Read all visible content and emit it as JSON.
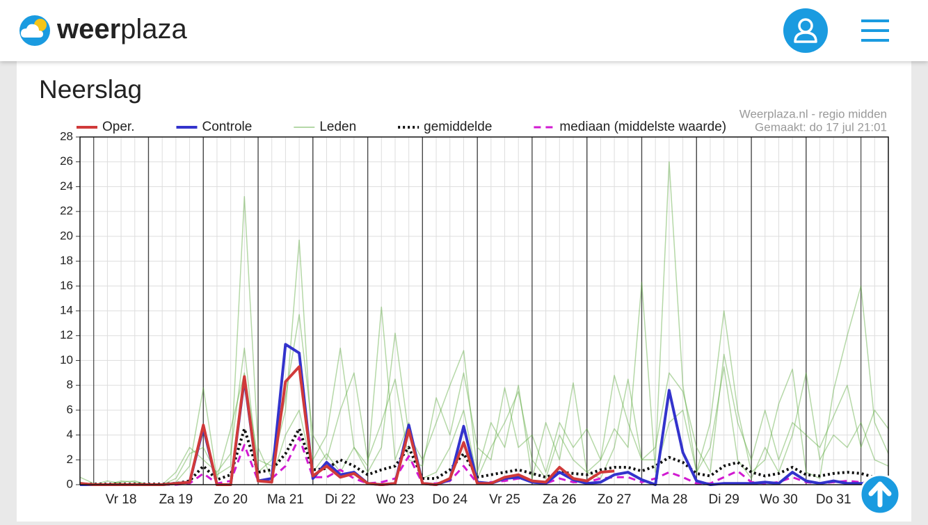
{
  "header": {
    "logo_bold": "weer",
    "logo_light": "plaza"
  },
  "card": {
    "title": "Neerslag",
    "source": "Weerplaza.nl - regio midden",
    "made": "Gemaakt: do 17 jul 21:01"
  },
  "chart_data": {
    "type": "line",
    "categories": [
      null,
      null,
      null,
      "Vr 18",
      null,
      null,
      null,
      "Za 19",
      null,
      null,
      null,
      "Zo 20",
      null,
      null,
      null,
      "Ma 21",
      null,
      null,
      null,
      "Di 22",
      null,
      null,
      null,
      "Wo 23",
      null,
      null,
      null,
      "Do 24",
      null,
      null,
      null,
      "Vr 25",
      null,
      null,
      null,
      "Za 26",
      null,
      null,
      null,
      "Zo 27",
      null,
      null,
      null,
      "Ma 28",
      null,
      null,
      null,
      "Di 29",
      null,
      null,
      null,
      "Wo 30",
      null,
      null,
      null,
      "Do 31",
      null,
      null,
      null,
      null
    ],
    "ylim": [
      0,
      28
    ],
    "yticks": [
      0,
      2,
      4,
      6,
      8,
      10,
      12,
      14,
      16,
      18,
      20,
      22,
      24,
      26,
      28
    ],
    "grid": true,
    "series": [
      {
        "name": "Oper.",
        "color": "#d03a3a",
        "style": "solid",
        "values": [
          0.1,
          0,
          0,
          0,
          0,
          0,
          0,
          0.1,
          0.2,
          4.8,
          0,
          0,
          8.7,
          0.3,
          0.2,
          8.3,
          9.5,
          0.7,
          1.5,
          0.6,
          0.9,
          0.1,
          0,
          0.1,
          4.4,
          0.1,
          0,
          0.5,
          3.4,
          0.1,
          0.1,
          0.6,
          0.8,
          0.3,
          0.2,
          1.4,
          0.5,
          0.3,
          1.0,
          1.1,
          null,
          null,
          null,
          null,
          null,
          null,
          null,
          null,
          null,
          null,
          null,
          null,
          null,
          null,
          null,
          null,
          null,
          null,
          null,
          null
        ]
      },
      {
        "name": "Controle",
        "color": "#3333cc",
        "style": "solid",
        "values": [
          0,
          0,
          0,
          0,
          0,
          0,
          0,
          0.1,
          0.2,
          4.6,
          0,
          0,
          8.5,
          0.3,
          0.5,
          11.3,
          10.6,
          0.5,
          1.8,
          0.8,
          1.0,
          0.1,
          0,
          0.1,
          4.8,
          0.1,
          0,
          0.4,
          4.7,
          0.2,
          0.1,
          0.5,
          0.6,
          0.2,
          0.1,
          1.0,
          0.4,
          0.1,
          0.2,
          0.8,
          1.0,
          0.4,
          0,
          7.6,
          2.6,
          0.3,
          0,
          0.1,
          0.1,
          0.1,
          0.2,
          0.1,
          1.0,
          0.3,
          0.1,
          0.3,
          0.1,
          0.1,
          0.1,
          0.2
        ]
      },
      {
        "name": "Leden",
        "color": "#5aa83c",
        "style": "thin",
        "runs": [
          [
            0.6,
            0.1,
            0,
            0.3,
            0.2,
            0,
            0,
            0.5,
            2.5,
            3.0,
            0.8,
            1.5,
            23.2,
            3.0,
            0.5,
            4.0,
            6.0,
            1.0,
            2.5,
            1.0,
            3.0,
            1.5,
            14.3,
            2.0,
            5.0,
            0.5,
            1.0,
            3.0,
            6.0,
            0.5,
            3.0,
            5.0,
            7.5,
            2.0,
            0.5,
            4.0,
            2.0,
            1.0,
            2.0,
            4.5,
            3.0,
            16.3,
            1.0,
            5.0,
            6.0,
            1.0,
            3.0,
            9.5,
            2.0,
            0.5,
            3.0,
            1.0,
            4.0,
            9.0,
            2.0,
            4.0,
            3.0,
            5.0,
            2.0,
            1.5
          ],
          [
            0,
            0,
            0.3,
            0.1,
            0,
            0,
            0,
            0.2,
            1.5,
            7.8,
            0.5,
            4.5,
            9.0,
            2.0,
            1.5,
            6.0,
            19.7,
            2.0,
            4.0,
            11.0,
            3.0,
            1.0,
            3.0,
            12.2,
            4.0,
            2.0,
            5.0,
            8.0,
            10.8,
            1.0,
            5.0,
            3.0,
            8.0,
            0.5,
            5.0,
            2.0,
            8.2,
            1.0,
            0.5,
            3.0,
            8.5,
            2.0,
            2.0,
            26.0,
            8.0,
            1.0,
            5.0,
            14.0,
            6.0,
            1.0,
            2.0,
            6.5,
            9.3,
            1.0,
            0.5,
            7.6,
            12.0,
            16.0,
            5.0,
            2.5
          ],
          [
            0.2,
            0,
            0,
            0.2,
            0.3,
            0,
            0,
            1.0,
            3.0,
            2.0,
            1.0,
            2.5,
            11.0,
            1.0,
            2.0,
            7.0,
            13.7,
            4.0,
            2.0,
            6.0,
            9.0,
            2.0,
            5.0,
            8.5,
            2.0,
            1.5,
            7.0,
            4.0,
            9.0,
            3.0,
            2.0,
            7.8,
            3.0,
            4.0,
            1.0,
            5.0,
            3.0,
            4.5,
            2.0,
            8.8,
            5.0,
            2.0,
            3.0,
            9.0,
            7.5,
            3.0,
            1.0,
            10.5,
            5.0,
            2.0,
            6.0,
            2.0,
            5.0,
            4.0,
            3.0,
            5.5,
            8.0,
            3.0,
            6.0,
            4.5
          ]
        ]
      },
      {
        "name": "gemiddelde",
        "color": "#111111",
        "style": "dotted",
        "values": [
          0.05,
          0.05,
          0.05,
          0.05,
          0.05,
          0.05,
          0.05,
          0.1,
          0.3,
          1.5,
          0.4,
          0.8,
          4.5,
          1.0,
          1.2,
          2.5,
          4.5,
          1.2,
          1.3,
          2.0,
          1.5,
          0.8,
          1.2,
          1.5,
          3.0,
          0.5,
          0.5,
          1.2,
          2.5,
          0.6,
          0.8,
          1.0,
          1.2,
          0.9,
          0.6,
          1.0,
          0.9,
          0.8,
          1.2,
          1.4,
          1.4,
          1.1,
          1.5,
          2.2,
          1.8,
          0.9,
          0.7,
          1.5,
          1.8,
          1.0,
          0.7,
          0.9,
          1.4,
          0.8,
          0.7,
          0.9,
          1.0,
          0.9,
          0.6,
          0.5
        ]
      },
      {
        "name": "mediaan (middelste waarde)",
        "color": "#d11ad1",
        "style": "dashed",
        "values": [
          0,
          0,
          0,
          0,
          0,
          0,
          0,
          0,
          0.1,
          0.9,
          0.1,
          0.3,
          3.2,
          0.3,
          0.5,
          1.5,
          3.8,
          0.6,
          0.6,
          1.2,
          0.5,
          0.1,
          0.2,
          0.5,
          2.3,
          0.1,
          0.1,
          0.3,
          1.5,
          0.1,
          0.2,
          0.3,
          0.5,
          0.3,
          0.1,
          0.5,
          0.2,
          0.2,
          0.5,
          0.6,
          0.6,
          0.2,
          0.5,
          1.0,
          0.6,
          0.1,
          0.1,
          0.6,
          1.1,
          0.2,
          0.1,
          0.2,
          0.6,
          0.2,
          0.1,
          0.2,
          0.3,
          0.2,
          0.1,
          0.1
        ]
      }
    ]
  }
}
